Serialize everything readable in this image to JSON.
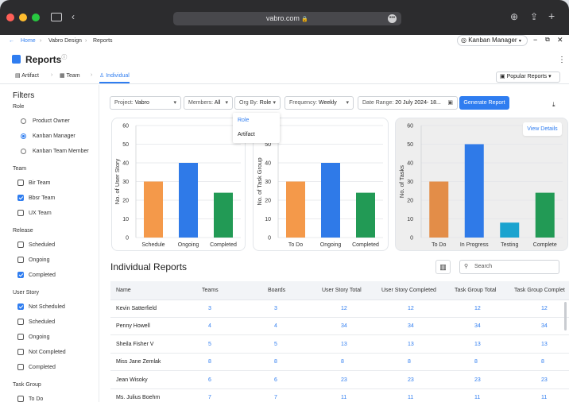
{
  "browser": {
    "url": "vabro.com"
  },
  "breadcrumb": [
    "Home",
    "Vabro Design",
    "Reports"
  ],
  "role_selector": "Kanban Manager",
  "page": {
    "title": "Reports"
  },
  "tabs": [
    "Artifact",
    "Team",
    "Individual"
  ],
  "popular_reports": "Popular Reports",
  "sidebar": {
    "title": "Filters",
    "sections": [
      {
        "title": "Role",
        "type": "radio",
        "options": [
          {
            "label": "Product Owner",
            "checked": false
          },
          {
            "label": "Kanban Manager",
            "checked": true
          },
          {
            "label": "Kanban Team Member",
            "checked": false
          }
        ]
      },
      {
        "title": "Team",
        "type": "checkbox",
        "options": [
          {
            "label": "Bir Team",
            "checked": false
          },
          {
            "label": "Bbsr Team",
            "checked": true
          },
          {
            "label": "UX Team",
            "checked": false
          }
        ]
      },
      {
        "title": "Release",
        "type": "checkbox",
        "options": [
          {
            "label": "Scheduled",
            "checked": false
          },
          {
            "label": "Ongoing",
            "checked": false
          },
          {
            "label": "Completed",
            "checked": true
          }
        ]
      },
      {
        "title": "User Story",
        "type": "checkbox",
        "options": [
          {
            "label": "Not Scheduled",
            "checked": true
          },
          {
            "label": "Scheduled",
            "checked": false
          },
          {
            "label": "Ongoing",
            "checked": false
          },
          {
            "label": "Not Completed",
            "checked": false
          },
          {
            "label": "Completed",
            "checked": false
          }
        ]
      },
      {
        "title": "Task Group",
        "type": "checkbox",
        "options": [
          {
            "label": "To Do",
            "checked": false
          }
        ]
      }
    ]
  },
  "filters": {
    "project_label": "Project:",
    "project_value": "Vabro",
    "members_label": "Members:",
    "members_value": "All",
    "orgby_label": "Org By:",
    "orgby_value": "Role",
    "frequency_label": "Frequency:",
    "frequency_value": "Weekly",
    "daterange_label": "Date Range:",
    "daterange_value": "20 July 2024- 18...",
    "generate": "Generate Report"
  },
  "orgby_dropdown": [
    "Role",
    "Artifact"
  ],
  "view_details": "View Details",
  "chart_data": [
    {
      "type": "bar",
      "ylabel": "No. of User Story",
      "categories": [
        "Schedule",
        "Ongoing",
        "Completed"
      ],
      "values": [
        30,
        40,
        24
      ],
      "colors": [
        "#f4994a",
        "#2f7ae8",
        "#229a55"
      ],
      "ylim": [
        0,
        60
      ],
      "yticks": [
        0,
        10,
        20,
        30,
        40,
        50,
        60
      ]
    },
    {
      "type": "bar",
      "ylabel": "No. of Task Group",
      "categories": [
        "To Do",
        "Ongoing",
        "Completed"
      ],
      "values": [
        30,
        40,
        24
      ],
      "colors": [
        "#f4994a",
        "#2f7ae8",
        "#229a55"
      ],
      "ylim": [
        0,
        60
      ],
      "yticks": [
        0,
        10,
        20,
        30,
        40,
        50,
        60
      ]
    },
    {
      "type": "bar",
      "ylabel": "No. of Tasks",
      "categories": [
        "To Do",
        "In Progress",
        "Testing",
        "Complete"
      ],
      "values": [
        30,
        50,
        8,
        24
      ],
      "colors": [
        "#e38d48",
        "#2f7ae8",
        "#1aa3cf",
        "#229a55"
      ],
      "ylim": [
        0,
        60
      ],
      "yticks": [
        0,
        10,
        20,
        30,
        40,
        50,
        60
      ]
    }
  ],
  "table": {
    "title": "Individual  Reports",
    "search_placeholder": "Search",
    "columns": [
      "Name",
      "Teams",
      "Boards",
      "User Story Total",
      "User Story Completed",
      "Task Group Total",
      "Task Group Complet"
    ],
    "rows": [
      [
        "Kevin Satterfield",
        "3",
        "3",
        "12",
        "12",
        "12",
        "12"
      ],
      [
        "Penny Howell",
        "4",
        "4",
        "34",
        "34",
        "34",
        "34"
      ],
      [
        "Sheila Fisher V",
        "5",
        "5",
        "13",
        "13",
        "13",
        "13"
      ],
      [
        "Miss Jane Zemlak",
        "8",
        "8",
        "8",
        "8",
        "8",
        "8"
      ],
      [
        "Jean Wisoky",
        "6",
        "6",
        "23",
        "23",
        "23",
        "23"
      ],
      [
        "Ms. Julius Boehm",
        "7",
        "7",
        "11",
        "11",
        "11",
        "11"
      ]
    ]
  }
}
